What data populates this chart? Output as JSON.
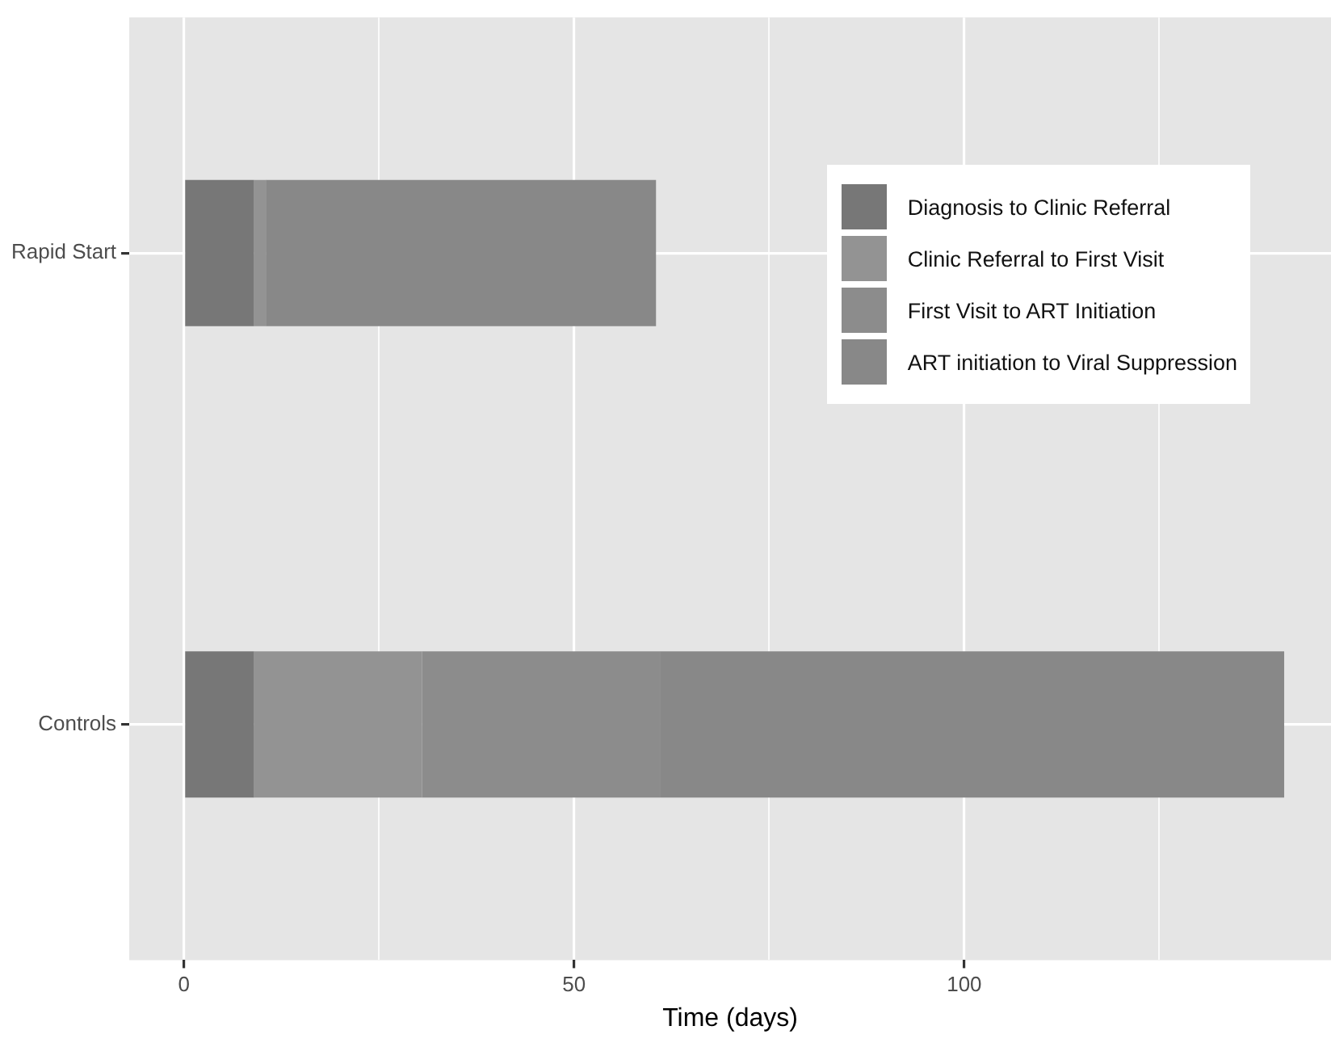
{
  "chart_data": {
    "type": "bar",
    "orientation": "horizontal",
    "stacked": true,
    "xlabel": "Time (days)",
    "categories": [
      "Rapid Start",
      "Controls"
    ],
    "series": [
      {
        "name": "Diagnosis to Clinic Referral",
        "color": "#777777",
        "values": [
          9,
          9
        ]
      },
      {
        "name": "Clinic Referral to First Visit",
        "color": "#939393",
        "values": [
          1.5,
          21.5
        ]
      },
      {
        "name": "First Visit to ART Initiation",
        "color": "#8c8c8c",
        "values": [
          0,
          30.5
        ]
      },
      {
        "name": "ART initiation to Viral Suppression",
        "color": "#888888",
        "values": [
          50,
          80
        ]
      }
    ],
    "xlim": [
      -7,
      147
    ],
    "xticks": [
      0,
      {
        "value": 25,
        "label": null
      },
      50,
      {
        "value": 75,
        "label": null
      },
      100,
      {
        "value": 125,
        "label": null
      }
    ],
    "grid": true,
    "legend": "top right"
  }
}
